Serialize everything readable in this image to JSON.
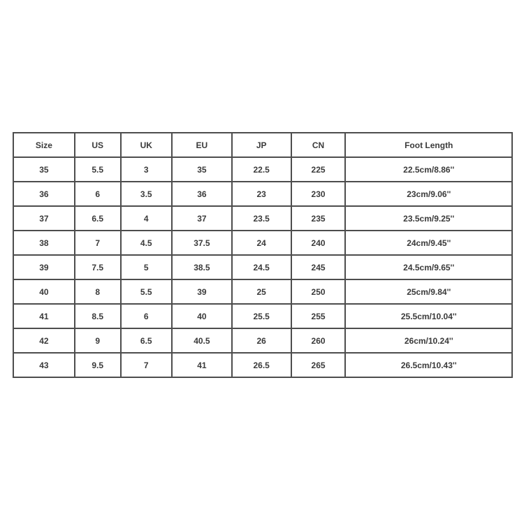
{
  "page": {
    "background_color": "#ffffff",
    "border_color": "#4d4d4d",
    "text_color": "#3a3a3a"
  },
  "chart_data": {
    "type": "table",
    "columns": [
      "Size",
      "US",
      "UK",
      "EU",
      "JP",
      "CN",
      "Foot Length"
    ],
    "rows": [
      [
        "35",
        "5.5",
        "3",
        "35",
        "22.5",
        "225",
        "22.5cm/8.86''"
      ],
      [
        "36",
        "6",
        "3.5",
        "36",
        "23",
        "230",
        "23cm/9.06''"
      ],
      [
        "37",
        "6.5",
        "4",
        "37",
        "23.5",
        "235",
        "23.5cm/9.25''"
      ],
      [
        "38",
        "7",
        "4.5",
        "37.5",
        "24",
        "240",
        "24cm/9.45''"
      ],
      [
        "39",
        "7.5",
        "5",
        "38.5",
        "24.5",
        "245",
        "24.5cm/9.65''"
      ],
      [
        "40",
        "8",
        "5.5",
        "39",
        "25",
        "250",
        "25cm/9.84''"
      ],
      [
        "41",
        "8.5",
        "6",
        "40",
        "25.5",
        "255",
        "25.5cm/10.04''"
      ],
      [
        "42",
        "9",
        "6.5",
        "40.5",
        "26",
        "260",
        "26cm/10.24''"
      ],
      [
        "43",
        "9.5",
        "7",
        "41",
        "26.5",
        "265",
        "26.5cm/10.43''"
      ]
    ]
  }
}
